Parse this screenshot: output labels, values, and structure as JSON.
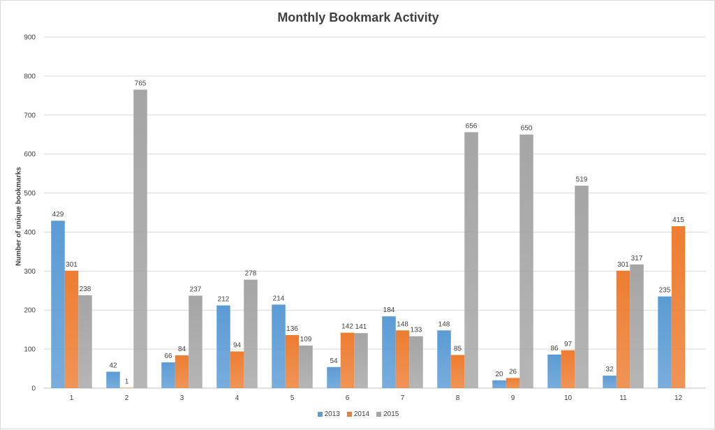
{
  "chart_data": {
    "type": "bar",
    "title": "Monthly Bookmark Activity",
    "xlabel": "",
    "ylabel": "Number of unique bookmarks",
    "ylim": [
      0,
      900
    ],
    "yticks": [
      0,
      100,
      200,
      300,
      400,
      500,
      600,
      700,
      800,
      900
    ],
    "categories": [
      "1",
      "2",
      "3",
      "4",
      "5",
      "6",
      "7",
      "8",
      "9",
      "10",
      "11",
      "12"
    ],
    "grid": true,
    "legend_position": "bottom",
    "series": [
      {
        "name": "2013",
        "color": "#5b9bd5",
        "values": [
          429,
          42,
          66,
          212,
          214,
          54,
          184,
          148,
          20,
          86,
          32,
          235
        ]
      },
      {
        "name": "2014",
        "color": "#ed7d31",
        "values": [
          301,
          1,
          84,
          94,
          136,
          142,
          148,
          85,
          26,
          97,
          301,
          415
        ]
      },
      {
        "name": "2015",
        "color": "#a5a5a5",
        "values": [
          238,
          765,
          237,
          278,
          109,
          141,
          133,
          656,
          650,
          519,
          317,
          null
        ]
      }
    ]
  }
}
